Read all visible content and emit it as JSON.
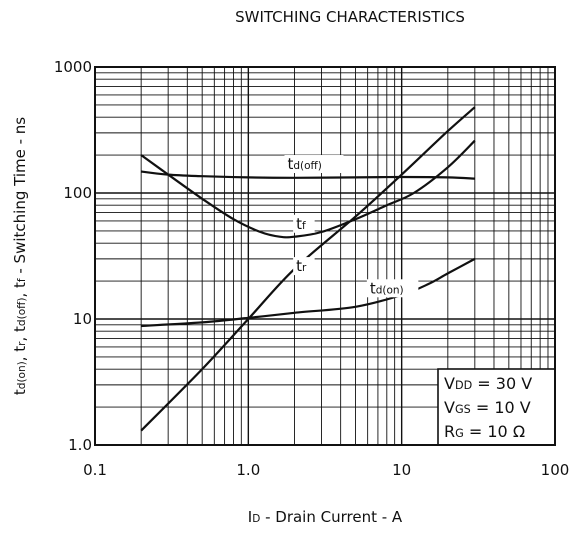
{
  "chart_data": {
    "type": "line",
    "title": "SWITCHING CHARACTERISTICS",
    "xlabel": {
      "main": "I",
      "sub": "D",
      "rest": " - Drain Current - A"
    },
    "ylabel": "td(on), tr, td(off), tf - Switching Time - ns",
    "x_scale": "log",
    "y_scale": "log",
    "xlim": [
      0.1,
      100
    ],
    "ylim": [
      1,
      1000
    ],
    "grid": true,
    "x_ticks": [
      {
        "value": 0.1,
        "label": "0.1"
      },
      {
        "value": 1,
        "label": "1.0"
      },
      {
        "value": 10,
        "label": "10"
      },
      {
        "value": 100,
        "label": "100"
      }
    ],
    "y_ticks": [
      {
        "value": 1,
        "label": "1.0"
      },
      {
        "value": 10,
        "label": "10"
      },
      {
        "value": 100,
        "label": "100"
      },
      {
        "value": 1000,
        "label": "1000"
      }
    ],
    "series": [
      {
        "name": "td(off)",
        "label_main": "t",
        "label_sub": "d(off)",
        "label_at": [
          1.8,
          155
        ],
        "x": [
          0.2,
          0.3,
          0.5,
          1,
          2,
          5,
          10,
          20,
          30
        ],
        "y": [
          148,
          140,
          136,
          133,
          132,
          133,
          134,
          133,
          130
        ]
      },
      {
        "name": "tf",
        "label_main": "t",
        "label_sub": "f",
        "label_at": [
          2.05,
          52
        ],
        "x": [
          0.2,
          0.3,
          0.5,
          0.8,
          1.2,
          1.6,
          2,
          3,
          5,
          8,
          12,
          20,
          30
        ],
        "y": [
          200,
          140,
          90,
          62,
          49,
          45,
          45,
          49,
          62,
          80,
          100,
          160,
          260
        ]
      },
      {
        "name": "tr",
        "label_main": "t",
        "label_sub": "r",
        "label_at": [
          2.05,
          24
        ],
        "x": [
          0.2,
          0.5,
          1,
          2,
          5,
          10,
          20,
          30
        ],
        "y": [
          1.3,
          4,
          10,
          25,
          65,
          140,
          310,
          480
        ]
      },
      {
        "name": "td(on)",
        "label_main": "t",
        "label_sub": "d(on)",
        "label_at": [
          6.2,
          16
        ],
        "x": [
          0.2,
          0.5,
          1,
          2,
          5,
          10,
          15,
          20,
          30
        ],
        "y": [
          8.8,
          9.4,
          10.2,
          11.2,
          12.5,
          15.5,
          19,
          23,
          30
        ]
      }
    ],
    "conditions": [
      {
        "main": "V",
        "sub": "DD",
        "value": " = 30 V"
      },
      {
        "main": "V",
        "sub": "GS",
        "value": " = 10 V"
      },
      {
        "main": "R",
        "sub": "G",
        "value": " = 10 Ω"
      }
    ]
  }
}
